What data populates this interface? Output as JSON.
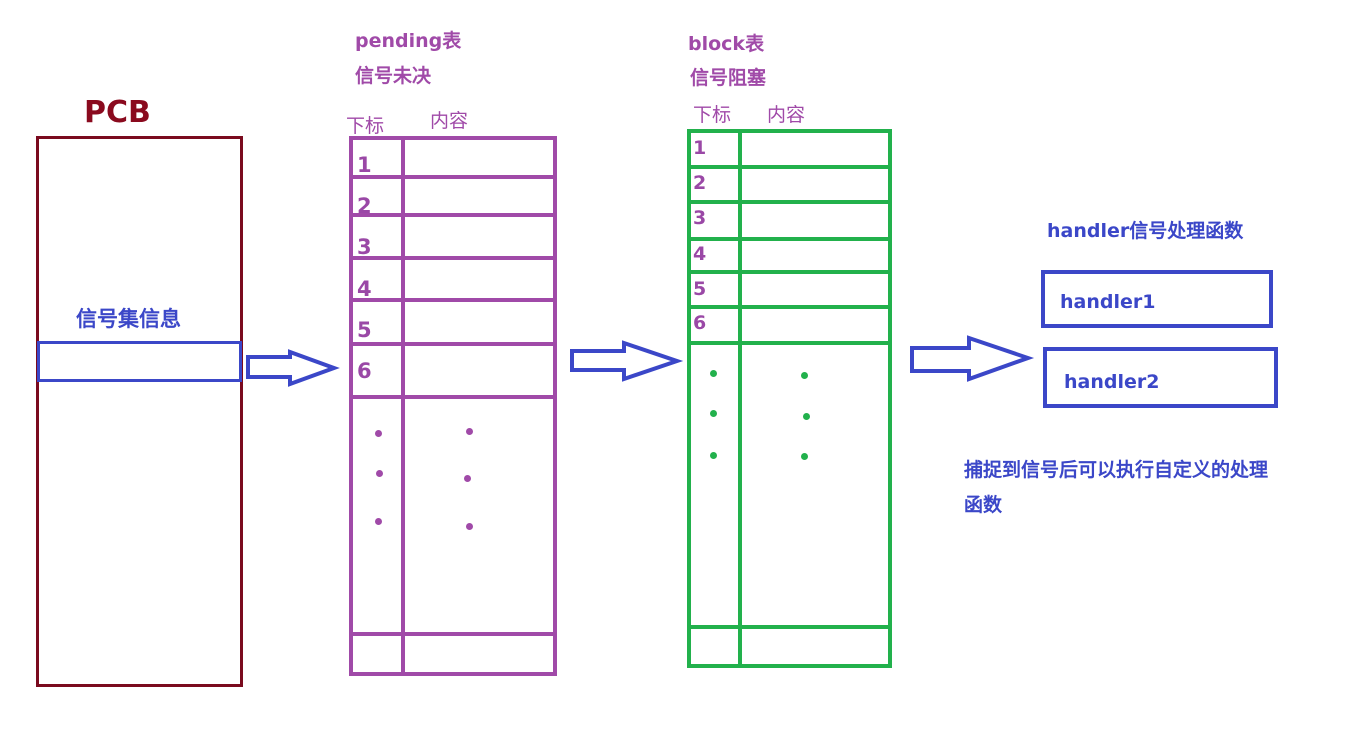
{
  "pcb": {
    "title": "PCB",
    "signal_set_label": "信号集信息"
  },
  "pending": {
    "title": "pending表",
    "subtitle": "信号未决",
    "col_index": "下标",
    "col_content": "内容",
    "rows": [
      "1",
      "2",
      "3",
      "4",
      "5",
      "6"
    ]
  },
  "block": {
    "title": "block表",
    "subtitle": "信号阻塞",
    "col_index": "下标",
    "col_content": "内容",
    "rows": [
      "1",
      "2",
      "3",
      "4",
      "5",
      "6"
    ]
  },
  "handler": {
    "title": "handler信号处理函数",
    "items": [
      "handler1",
      "handler2"
    ],
    "note_line1": "捕捉到信号后可以执行自定义的处理",
    "note_line2": "函数"
  },
  "colors": {
    "pcb": "#7a0a1e",
    "pending": "#a04aa8",
    "block": "#22b14c",
    "handler": "#3b47c8",
    "arrow": "#3b47c8"
  }
}
